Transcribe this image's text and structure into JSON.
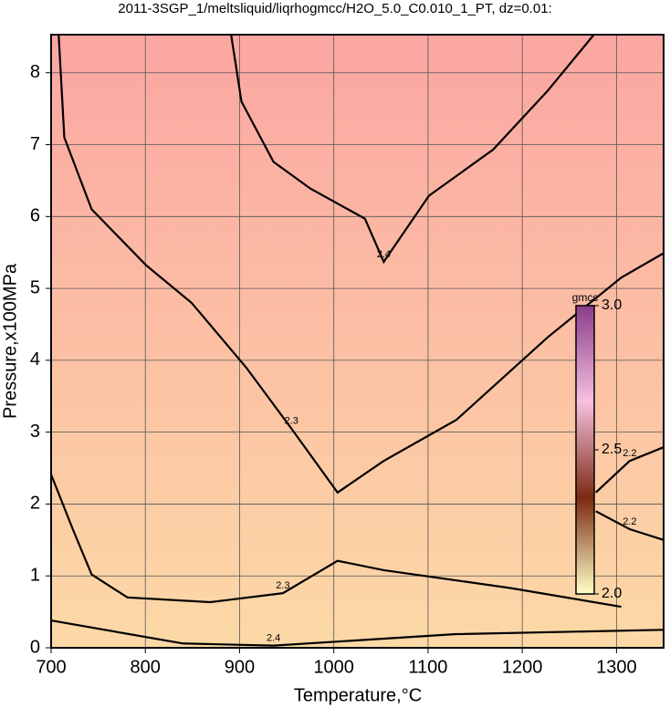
{
  "chart_data": {
    "type": "contour",
    "title": "2011-3SGP_1/meltsliquid/liqrhogmcc/H2O_5.0_C0.010_1_PT, dz=0.01:",
    "xlabel": "Temperature,°C",
    "ylabel": "Pressure,x100MPa",
    "xlim": [
      700,
      1350
    ],
    "ylim": [
      0,
      8.53
    ],
    "xticks": [
      700,
      800,
      900,
      1000,
      1100,
      1200,
      1300
    ],
    "yticks": [
      0,
      1,
      2,
      3,
      4,
      5,
      6,
      7,
      8
    ],
    "grid": true,
    "background": [
      "#fba6a2",
      "#fcd9a6"
    ],
    "series": [
      {
        "name": "2.4",
        "color": "#000",
        "x": [
          891,
          902,
          936,
          975,
          1033,
          1053,
          1101,
          1169,
          1227,
          1276
        ],
        "y": [
          8.53,
          7.6,
          6.76,
          6.39,
          5.97,
          5.37,
          6.29,
          6.93,
          7.75,
          8.53
        ]
      },
      {
        "name": "2.3",
        "color": "#000",
        "x": [
          708,
          714,
          743,
          801,
          849,
          907,
          955,
          1004,
          1053,
          1130,
          1227,
          1305,
          1350
        ],
        "y": [
          8.53,
          7.1,
          6.1,
          5.32,
          4.8,
          3.9,
          3.05,
          2.16,
          2.6,
          3.17,
          4.32,
          5.15,
          5.49
        ]
      },
      {
        "name": "2.3",
        "color": "#000",
        "x": [
          700,
          723,
          743,
          781,
          869,
          946,
          1004,
          1053,
          1188,
          1305
        ],
        "y": [
          2.41,
          1.65,
          1.02,
          0.7,
          0.635,
          0.76,
          1.21,
          1.08,
          0.83,
          0.57
        ]
      },
      {
        "name": "2.2",
        "color": "#000",
        "x": [
          1278,
          1314,
          1350
        ],
        "y": [
          2.16,
          2.6,
          2.79
        ]
      },
      {
        "name": "2.2",
        "color": "#000",
        "x": [
          1278,
          1314,
          1350
        ],
        "y": [
          1.9,
          1.65,
          1.5
        ]
      },
      {
        "name": "2.4",
        "color": "#000",
        "x": [
          700,
          840,
          936,
          1130,
          1350
        ],
        "y": [
          0.38,
          0.06,
          0.03,
          0.19,
          0.25
        ]
      }
    ],
    "colorbar": {
      "label": "gmcc",
      "lim": [
        2.0,
        3.0
      ],
      "ticks": [
        {
          "value": 2.0,
          "label": "2.0"
        },
        {
          "value": 2.5,
          "label": "2.5"
        },
        {
          "value": 3.0,
          "label": "3.0"
        }
      ],
      "colors": [
        "#ffffc8",
        "#7a2a10",
        "#f7c0e0",
        "#8a3c8a"
      ]
    }
  }
}
